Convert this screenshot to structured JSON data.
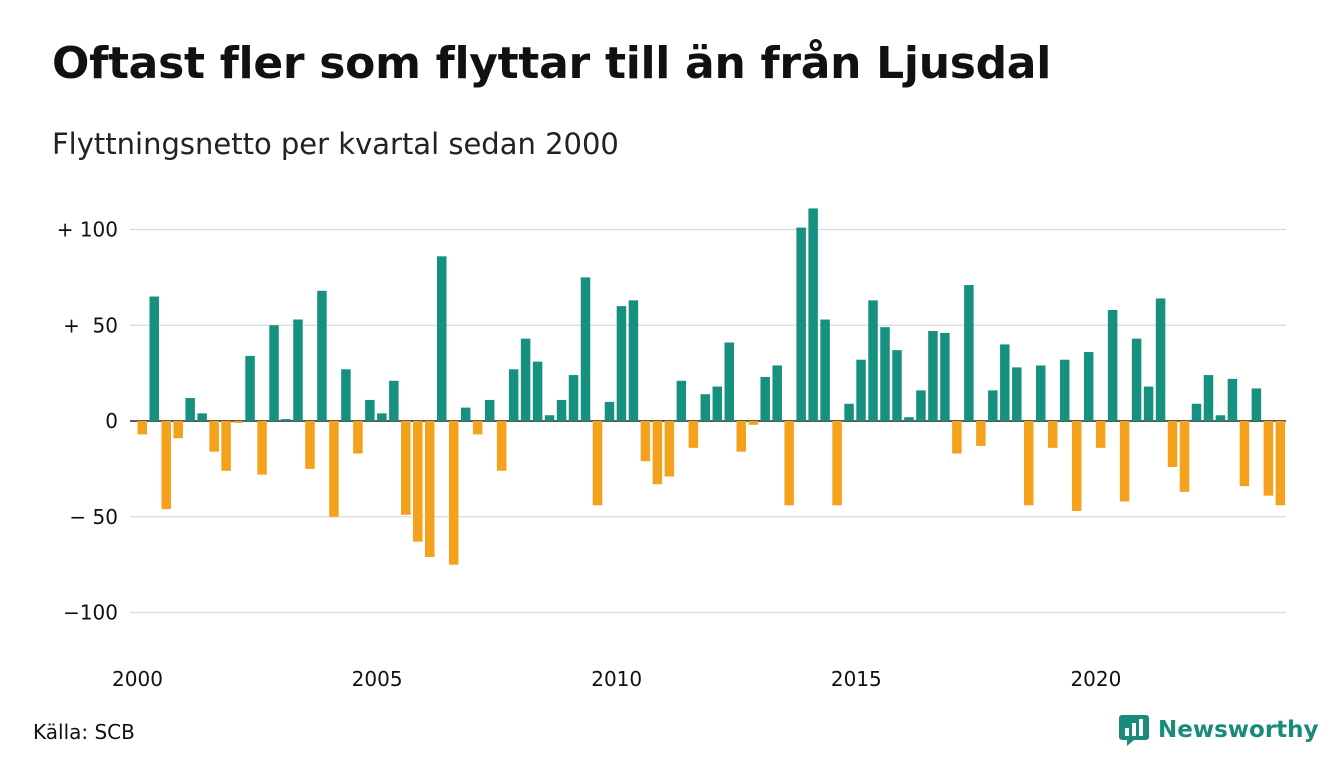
{
  "header": {
    "title": "Oftast fler som flyttar till än från Ljusdal",
    "subtitle": "Flyttningsnetto per kvartal sedan 2000"
  },
  "footer": {
    "source": "Källa: SCB",
    "brand_name": "Newsworthy",
    "brand_icon": "newsworthy-logo-icon"
  },
  "colors": {
    "positive": "#17917f",
    "negative": "#f4a11c",
    "grid": "#d9d9d9",
    "brand": "#1a8a7a"
  },
  "chart_data": {
    "type": "bar",
    "title": "Oftast fler som flyttar till än från Ljusdal",
    "subtitle": "Flyttningsnetto per kvartal sedan 2000",
    "xlabel": "",
    "ylabel": "",
    "ylim": [
      -100,
      100
    ],
    "grid": true,
    "y_ticks": [
      {
        "value": 100,
        "label": "+ 100"
      },
      {
        "value": 50,
        "label": "+  50"
      },
      {
        "value": 0,
        "label": "0"
      },
      {
        "value": -50,
        "label": "− 50"
      },
      {
        "value": -100,
        "label": "−100"
      }
    ],
    "x_ticks": [
      {
        "value": 2000,
        "label": "2000"
      },
      {
        "value": 2005,
        "label": "2005"
      },
      {
        "value": 2010,
        "label": "2010"
      },
      {
        "value": 2015,
        "label": "2015"
      },
      {
        "value": 2020,
        "label": "2020"
      }
    ],
    "start_year": 2000,
    "periods_per_year": 4,
    "values": [
      -7,
      65,
      -46,
      -9,
      12,
      4,
      -16,
      -26,
      -1,
      34,
      -28,
      50,
      1,
      53,
      -25,
      68,
      -50,
      27,
      -17,
      11,
      4,
      21,
      -49,
      -63,
      -71,
      86,
      -75,
      7,
      -7,
      11,
      -26,
      27,
      43,
      31,
      3,
      11,
      24,
      75,
      -44,
      10,
      60,
      63,
      -21,
      -33,
      -29,
      21,
      -14,
      14,
      18,
      41,
      -16,
      -2,
      23,
      29,
      -44,
      101,
      111,
      53,
      -44,
      9,
      32,
      63,
      49,
      37,
      2,
      16,
      47,
      46,
      -17,
      71,
      -13,
      16,
      40,
      28,
      -44,
      29,
      -14,
      32,
      -47,
      36,
      -14,
      58,
      -42,
      43,
      18,
      64,
      -24,
      -37,
      9,
      24,
      3,
      22,
      -34,
      17,
      -39,
      -44
    ]
  }
}
